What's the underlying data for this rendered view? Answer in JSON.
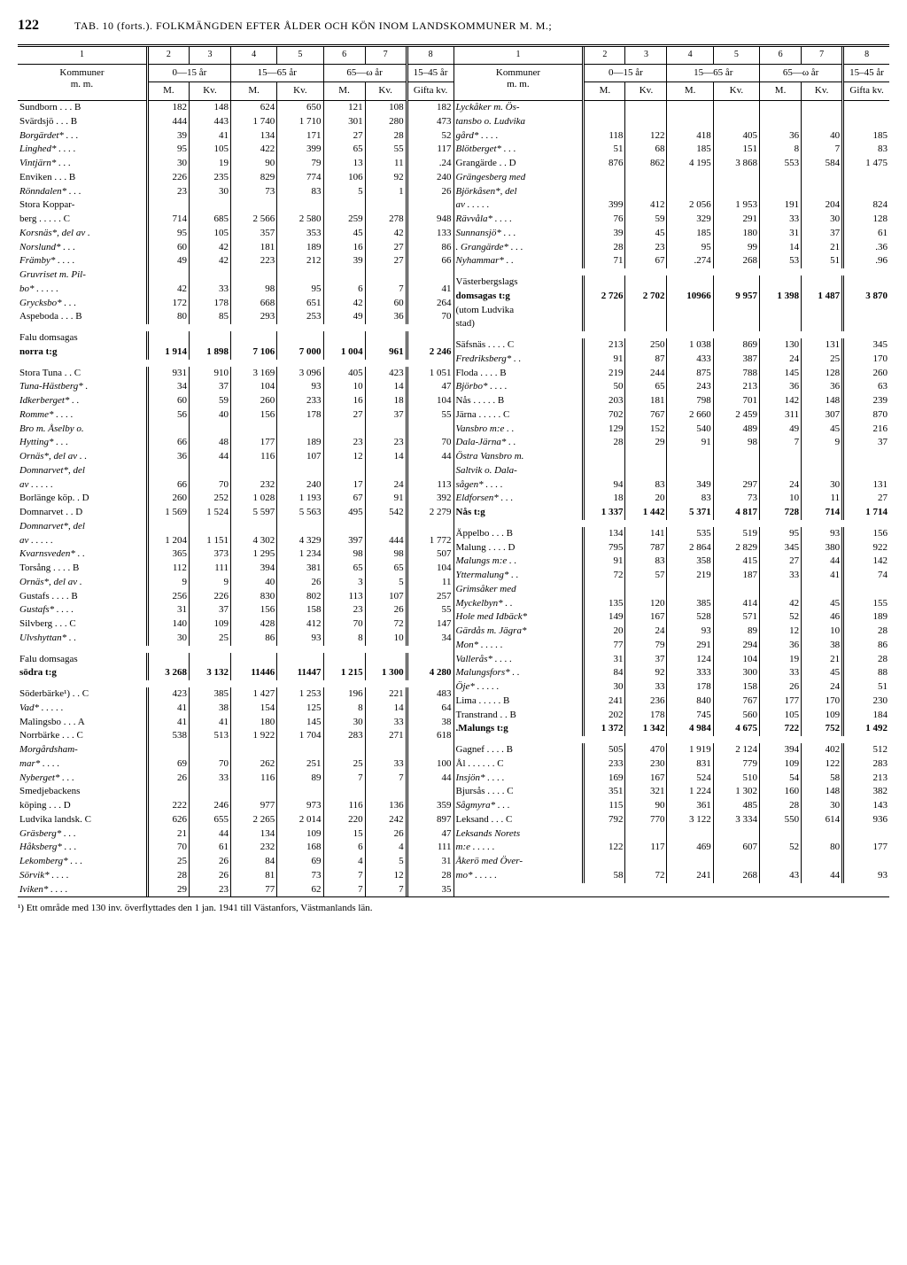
{
  "page_number": "122",
  "page_title": "TAB. 10 (forts.). FOLKMÄNGDEN EFTER ÅLDER OCH KÖN INOM LANDSKOMMUNER M. M.;",
  "footnote": "¹) Ett område med 130 inv. överflyttades den 1 jan. 1941 till Västanfors, Västmanlands län.",
  "header": {
    "col_nums": [
      "1",
      "2",
      "3",
      "4",
      "5",
      "6",
      "7",
      "8"
    ],
    "kommuner": "Kommuner",
    "mm": "m. m.",
    "g0_15": "0—15 år",
    "g15_65": "15—65 år",
    "g65_w": "65—ω år",
    "g15_45": "15–45 år",
    "M": "M.",
    "Kv": "Kv.",
    "Gifta": "Gifta kv."
  },
  "left_rows": [
    {
      "n": "Sundborn . . . B",
      "c": [
        "182",
        "148",
        "624",
        "650",
        "121",
        "108",
        "182"
      ]
    },
    {
      "n": "Svärdsjö . . . B",
      "c": [
        "444",
        "443",
        "1 740",
        "1 710",
        "301",
        "280",
        "473"
      ]
    },
    {
      "n": "Borgärdet* . . .",
      "i": true,
      "c": [
        "39",
        "41",
        "134",
        "171",
        "27",
        "28",
        "52"
      ]
    },
    {
      "n": "Linghed* . . . .",
      "i": true,
      "c": [
        "95",
        "105",
        "422",
        "399",
        "65",
        "55",
        "117"
      ]
    },
    {
      "n": "Vintjärn* . . .",
      "i": true,
      "c": [
        "30",
        "19",
        "90",
        "79",
        "13",
        "11",
        ".24"
      ]
    },
    {
      "n": "Enviken . . . B",
      "c": [
        "226",
        "235",
        "829",
        "774",
        "106",
        "92",
        "240"
      ]
    },
    {
      "n": "Rönndalen* . . .",
      "i": true,
      "c": [
        "23",
        "30",
        "73",
        "83",
        "5",
        "1",
        "26"
      ]
    },
    {
      "n": "Stora Koppar-",
      "c": [
        "",
        "",
        "",
        "",
        "",
        "",
        ""
      ]
    },
    {
      "n": "  berg . . . . . C",
      "c": [
        "714",
        "685",
        "2 566",
        "2 580",
        "259",
        "278",
        "948"
      ]
    },
    {
      "n": "Korsnäs*, del av .",
      "i": true,
      "c": [
        "95",
        "105",
        "357",
        "353",
        "45",
        "42",
        "133"
      ]
    },
    {
      "n": "Norslund* . . .",
      "i": true,
      "c": [
        "60",
        "42",
        "181",
        "189",
        "16",
        "27",
        "86"
      ]
    },
    {
      "n": "Främby* . . . .",
      "i": true,
      "c": [
        "49",
        "42",
        "223",
        "212",
        "39",
        "27",
        "66"
      ]
    },
    {
      "n": "Gruvriset m. Pil-",
      "i": true,
      "c": [
        "",
        "",
        "",
        "",
        "",
        "",
        ""
      ]
    },
    {
      "n": "  bo* . . . . .",
      "i": true,
      "c": [
        "42",
        "33",
        "98",
        "95",
        "6",
        "7",
        "41"
      ]
    },
    {
      "n": "Grycksbo* . . .",
      "i": true,
      "c": [
        "172",
        "178",
        "668",
        "651",
        "42",
        "60",
        "264"
      ]
    },
    {
      "n": "Aspeboda . . . B",
      "c": [
        "80",
        "85",
        "293",
        "253",
        "49",
        "36",
        "70"
      ]
    },
    {
      "spacer": true
    },
    {
      "n": "Falu domsagas",
      "c": [
        "",
        "",
        "",
        "",
        "",
        "",
        ""
      ]
    },
    {
      "n": "      norra t:g",
      "b": true,
      "c": [
        "1 914",
        "1 898",
        "7 106",
        "7 000",
        "1 004",
        "961",
        "2 246"
      ]
    },
    {
      "spacer": true
    },
    {
      "n": "Stora Tuna . . C",
      "c": [
        "931",
        "910",
        "3 169",
        "3 096",
        "405",
        "423",
        "1 051"
      ]
    },
    {
      "n": "Tuna-Hästberg* .",
      "i": true,
      "c": [
        "34",
        "37",
        "104",
        "93",
        "10",
        "14",
        "47"
      ]
    },
    {
      "n": "Idkerberget* . .",
      "i": true,
      "c": [
        "60",
        "59",
        "260",
        "233",
        "16",
        "18",
        "104"
      ]
    },
    {
      "n": "Romme* . . . .",
      "i": true,
      "c": [
        "56",
        "40",
        "156",
        "178",
        "27",
        "37",
        "55"
      ]
    },
    {
      "n": "Bro m. Åselby o.",
      "i": true,
      "c": [
        "",
        "",
        "",
        "",
        "",
        "",
        ""
      ]
    },
    {
      "n": "  Hytting* . . .",
      "i": true,
      "c": [
        "66",
        "48",
        "177",
        "189",
        "23",
        "23",
        "70"
      ]
    },
    {
      "n": "Ornäs*, del av . .",
      "i": true,
      "c": [
        "36",
        "44",
        "116",
        "107",
        "12",
        "14",
        "44"
      ]
    },
    {
      "n": "Domnarvet*, del",
      "i": true,
      "c": [
        "",
        "",
        "",
        "",
        "",
        "",
        ""
      ]
    },
    {
      "n": "  av . . . . .",
      "i": true,
      "c": [
        "66",
        "70",
        "232",
        "240",
        "17",
        "24",
        "113"
      ]
    },
    {
      "n": "Borlänge köp. . D",
      "c": [
        "260",
        "252",
        "1 028",
        "1 193",
        "67",
        "91",
        "392"
      ]
    },
    {
      "n": "Domnarvet . . D",
      "c": [
        "1 569",
        "1 524",
        "5 597",
        "5 563",
        "495",
        "542",
        "2 279"
      ]
    },
    {
      "n": "Domnarvet*, del",
      "i": true,
      "c": [
        "",
        "",
        "",
        "",
        "",
        "",
        ""
      ]
    },
    {
      "n": "  av . . . . .",
      "i": true,
      "c": [
        "1 204",
        "1 151",
        "4 302",
        "4 329",
        "397",
        "444",
        "1 772"
      ]
    },
    {
      "n": "Kvarnsveden* . .",
      "i": true,
      "c": [
        "365",
        "373",
        "1 295",
        "1 234",
        "98",
        "98",
        "507"
      ]
    },
    {
      "n": "Torsång . . . . B",
      "c": [
        "112",
        "111",
        "394",
        "381",
        "65",
        "65",
        "104"
      ]
    },
    {
      "n": "Ornäs*, del av .",
      "i": true,
      "c": [
        "9",
        "9",
        "40",
        "26",
        "3",
        "5",
        "11"
      ]
    },
    {
      "n": "Gustafs . . . . B",
      "c": [
        "256",
        "226",
        "830",
        "802",
        "113",
        "107",
        "257"
      ]
    },
    {
      "n": "Gustafs* . . . .",
      "i": true,
      "c": [
        "31",
        "37",
        "156",
        "158",
        "23",
        "26",
        "55"
      ]
    },
    {
      "n": "Silvberg . . . C",
      "c": [
        "140",
        "109",
        "428",
        "412",
        "70",
        "72",
        "147"
      ]
    },
    {
      "n": "Ulvshyttan* . .",
      "i": true,
      "c": [
        "30",
        "25",
        "86",
        "93",
        "8",
        "10",
        "34"
      ]
    },
    {
      "spacer": true
    },
    {
      "n": "Falu domsagas",
      "c": [
        "",
        "",
        "",
        "",
        "",
        "",
        ""
      ]
    },
    {
      "n": "      södra t:g",
      "b": true,
      "c": [
        "3 268",
        "3 132",
        "11446",
        "11447",
        "1 215",
        "1 300",
        "4 280"
      ]
    },
    {
      "spacer": true
    },
    {
      "n": "Söderbärke¹) . . C",
      "c": [
        "423",
        "385",
        "1 427",
        "1 253",
        "196",
        "221",
        "483"
      ]
    },
    {
      "n": "Vad* . . . . .",
      "i": true,
      "c": [
        "41",
        "38",
        "154",
        "125",
        "8",
        "14",
        "64"
      ]
    },
    {
      "n": "Malingsbo . . . A",
      "c": [
        "41",
        "41",
        "180",
        "145",
        "30",
        "33",
        "38"
      ]
    },
    {
      "n": "Norrbärke . . . C",
      "c": [
        "538",
        "513",
        "1 922",
        "1 704",
        "283",
        "271",
        "618"
      ]
    },
    {
      "n": "Morgårdsham-",
      "i": true,
      "c": [
        "",
        "",
        "",
        "",
        "",
        "",
        ""
      ]
    },
    {
      "n": "  mar* . . . .",
      "i": true,
      "c": [
        "69",
        "70",
        "262",
        "251",
        "25",
        "33",
        "100"
      ]
    },
    {
      "n": "Nyberget* . . .",
      "i": true,
      "c": [
        "26",
        "33",
        "116",
        "89",
        "7",
        "7",
        "44"
      ]
    },
    {
      "n": "Smedjebackens",
      "c": [
        "",
        "",
        "",
        "",
        "",
        "",
        ""
      ]
    },
    {
      "n": "  köping . . . D",
      "c": [
        "222",
        "246",
        "977",
        "973",
        "116",
        "136",
        "359"
      ]
    },
    {
      "n": "Ludvika landsk. C",
      "c": [
        "626",
        "655",
        "2 265",
        "2 014",
        "220",
        "242",
        "897"
      ]
    },
    {
      "n": "Gräsberg* . . .",
      "i": true,
      "c": [
        "21",
        "44",
        "134",
        "109",
        "15",
        "26",
        "47"
      ]
    },
    {
      "n": "Håksberg* . . .",
      "i": true,
      "c": [
        "70",
        "61",
        "232",
        "168",
        "6",
        "4",
        "111"
      ]
    },
    {
      "n": "Lekomberg* . . .",
      "i": true,
      "c": [
        "25",
        "26",
        "84",
        "69",
        "4",
        "5",
        "31"
      ]
    },
    {
      "n": "Sörvik* . . . .",
      "i": true,
      "c": [
        "28",
        "26",
        "81",
        "73",
        "7",
        "12",
        "28"
      ]
    },
    {
      "n": "Iviken* . . . .",
      "i": true,
      "c": [
        "29",
        "23",
        "77",
        "62",
        "7",
        "7",
        "35"
      ]
    }
  ],
  "right_rows": [
    {
      "n": "Lyckåker m. Ös-",
      "i": true,
      "c": [
        "",
        "",
        "",
        "",
        "",
        "",
        ""
      ]
    },
    {
      "n": "  tansbo o. Ludvika",
      "i": true,
      "c": [
        "",
        "",
        "",
        "",
        "",
        "",
        ""
      ]
    },
    {
      "n": "  gård* . . . .",
      "i": true,
      "c": [
        "118",
        "122",
        "418",
        "405",
        "36",
        "40",
        "185"
      ]
    },
    {
      "n": "Blötberget* . . .",
      "i": true,
      "c": [
        "51",
        "68",
        "185",
        "151",
        "8",
        "7",
        "83"
      ]
    },
    {
      "n": "Grangärde . . D",
      "c": [
        "876",
        "862",
        "4 195",
        "3 868",
        "553",
        "584",
        "1 475"
      ]
    },
    {
      "n": "Grängesberg med",
      "i": true,
      "c": [
        "",
        "",
        "",
        "",
        "",
        "",
        ""
      ]
    },
    {
      "n": "  Björkåsen*, del",
      "i": true,
      "c": [
        "",
        "",
        "",
        "",
        "",
        "",
        ""
      ]
    },
    {
      "n": "  av . . . . .",
      "i": true,
      "c": [
        "399",
        "412",
        "2 056",
        "1 953",
        "191",
        "204",
        "824"
      ]
    },
    {
      "n": "Rävvåla* . . . .",
      "i": true,
      "c": [
        "76",
        "59",
        "329",
        "291",
        "33",
        "30",
        "128"
      ]
    },
    {
      "n": "Sunnansjö* . . .",
      "i": true,
      "c": [
        "39",
        "45",
        "185",
        "180",
        "31",
        "37",
        "61"
      ]
    },
    {
      "n": ". Grangärde* . . .",
      "i": true,
      "c": [
        "28",
        "23",
        "95",
        "99",
        "14",
        "21",
        ".36"
      ]
    },
    {
      "n": "Nyhammar* . .",
      "i": true,
      "c": [
        "71",
        "67",
        ".274",
        "268",
        "53",
        "51",
        ".96"
      ]
    },
    {
      "spacer": true
    },
    {
      "n": "Västerbergslags",
      "c": [
        "",
        "",
        "",
        "",
        "",
        "",
        ""
      ]
    },
    {
      "n": "   domsagas t:g",
      "b": true,
      "c": [
        "2 726",
        "2 702",
        "10966",
        "9 957",
        "1 398",
        "1 487",
        "3 870"
      ]
    },
    {
      "n": "(utom Ludvika",
      "c": [
        "",
        "",
        "",
        "",
        "",
        "",
        ""
      ]
    },
    {
      "n": "stad)",
      "c": [
        "",
        "",
        "",
        "",
        "",
        "",
        ""
      ]
    },
    {
      "spacer": true
    },
    {
      "n": "Säfsnäs . . . . C",
      "c": [
        "213",
        "250",
        "1 038",
        "869",
        "130",
        "131",
        "345"
      ]
    },
    {
      "n": "Fredriksberg* . .",
      "i": true,
      "c": [
        "91",
        "87",
        "433",
        "387",
        "24",
        "25",
        "170"
      ]
    },
    {
      "n": "Floda . . . . B",
      "c": [
        "219",
        "244",
        "875",
        "788",
        "145",
        "128",
        "260"
      ]
    },
    {
      "n": "Björbo* . . . .",
      "i": true,
      "c": [
        "50",
        "65",
        "243",
        "213",
        "36",
        "36",
        "63"
      ]
    },
    {
      "n": "Nås . . . . . B",
      "c": [
        "203",
        "181",
        "798",
        "701",
        "142",
        "148",
        "239"
      ]
    },
    {
      "n": "Järna . . . . . C",
      "c": [
        "702",
        "767",
        "2 660",
        "2 459",
        "311",
        "307",
        "870"
      ]
    },
    {
      "n": "Vansbro m:e . .",
      "i": true,
      "c": [
        "129",
        "152",
        "540",
        "489",
        "49",
        "45",
        "216"
      ]
    },
    {
      "n": "Dala-Järna* . .",
      "i": true,
      "c": [
        "28",
        "29",
        "91",
        "98",
        "7",
        "9",
        "37"
      ]
    },
    {
      "n": "Östra Vansbro m.",
      "i": true,
      "c": [
        "",
        "",
        "",
        "",
        "",
        "",
        ""
      ]
    },
    {
      "n": "  Saltvik o. Dala-",
      "i": true,
      "c": [
        "",
        "",
        "",
        "",
        "",
        "",
        ""
      ]
    },
    {
      "n": "  sågen* . . . .",
      "i": true,
      "c": [
        "94",
        "83",
        "349",
        "297",
        "24",
        "30",
        "131"
      ]
    },
    {
      "n": "Eldforsen* . . .",
      "i": true,
      "c": [
        "18",
        "20",
        "83",
        "73",
        "10",
        "11",
        "27"
      ]
    },
    {
      "n": "        Nås t:g",
      "b": true,
      "c": [
        "1 337",
        "1 442",
        "5 371",
        "4 817",
        "728",
        "714",
        "1 714"
      ]
    },
    {
      "spacer": true
    },
    {
      "n": "Äppelbo . . . B",
      "c": [
        "134",
        "141",
        "535",
        "519",
        "95",
        "93",
        "156"
      ]
    },
    {
      "n": "Malung . . . . D",
      "c": [
        "795",
        "787",
        "2 864",
        "2 829",
        "345",
        "380",
        "922"
      ]
    },
    {
      "n": "Malungs m:e . .",
      "i": true,
      "c": [
        "91",
        "83",
        "358",
        "415",
        "27",
        "44",
        "142"
      ]
    },
    {
      "n": "Yttermalung* . .",
      "i": true,
      "c": [
        "72",
        "57",
        "219",
        "187",
        "33",
        "41",
        "74"
      ]
    },
    {
      "n": "Grimsåker med",
      "i": true,
      "c": [
        "",
        "",
        "",
        "",
        "",
        "",
        ""
      ]
    },
    {
      "n": "  Myckelbyn* . .",
      "i": true,
      "c": [
        "135",
        "120",
        "385",
        "414",
        "42",
        "45",
        "155"
      ]
    },
    {
      "n": "Hole med Idbäck*",
      "i": true,
      "c": [
        "149",
        "167",
        "528",
        "571",
        "52",
        "46",
        "189"
      ]
    },
    {
      "n": "Gärdås m. Jägra*",
      "i": true,
      "c": [
        "20",
        "24",
        "93",
        "89",
        "12",
        "10",
        "28"
      ]
    },
    {
      "n": "Mon* . . . . .",
      "i": true,
      "c": [
        "77",
        "79",
        "291",
        "294",
        "36",
        "38",
        "86"
      ]
    },
    {
      "n": "Vallerås* . . . .",
      "i": true,
      "c": [
        "31",
        "37",
        "124",
        "104",
        "19",
        "21",
        "28"
      ]
    },
    {
      "n": "Malungsfors* . .",
      "i": true,
      "c": [
        "84",
        "92",
        "333",
        "300",
        "33",
        "45",
        "88"
      ]
    },
    {
      "n": "Öje* . . . . .",
      "i": true,
      "c": [
        "30",
        "33",
        "178",
        "158",
        "26",
        "24",
        "51"
      ]
    },
    {
      "n": "Lima . . . . . B",
      "c": [
        "241",
        "236",
        "840",
        "767",
        "177",
        "170",
        "230"
      ]
    },
    {
      "n": "Transtrand . . B",
      "c": [
        "202",
        "178",
        "745",
        "560",
        "105",
        "109",
        "184"
      ]
    },
    {
      "n": "   .Malungs t:g",
      "b": true,
      "c": [
        "1 372",
        "1 342",
        "4 984",
        "4 675",
        "722",
        "752",
        "1 492"
      ]
    },
    {
      "spacer": true
    },
    {
      "n": "Gagnef . . . . B",
      "c": [
        "505",
        "470",
        "1 919",
        "2 124",
        "394",
        "402",
        "512"
      ]
    },
    {
      "n": "Ål . . . . . . C",
      "c": [
        "233",
        "230",
        "831",
        "779",
        "109",
        "122",
        "283"
      ]
    },
    {
      "n": "Insjön* . . . .",
      "i": true,
      "c": [
        "169",
        "167",
        "524",
        "510",
        "54",
        "58",
        "213"
      ]
    },
    {
      "n": "Bjursås . . . . C",
      "c": [
        "351",
        "321",
        "1 224",
        "1 302",
        "160",
        "148",
        "382"
      ]
    },
    {
      "n": "Sågmyra* . . .",
      "i": true,
      "c": [
        "115",
        "90",
        "361",
        "485",
        "28",
        "30",
        "143"
      ]
    },
    {
      "n": "Leksand . . . C",
      "c": [
        "792",
        "770",
        "3 122",
        "3 334",
        "550",
        "614",
        "936"
      ]
    },
    {
      "n": "Leksands Norets",
      "i": true,
      "c": [
        "",
        "",
        "",
        "",
        "",
        "",
        ""
      ]
    },
    {
      "n": "  m:e . . . . .",
      "i": true,
      "c": [
        "122",
        "117",
        "469",
        "607",
        "52",
        "80",
        "177"
      ]
    },
    {
      "n": "Åkerö med Över-",
      "i": true,
      "c": [
        "",
        "",
        "",
        "",
        "",
        "",
        ""
      ]
    },
    {
      "n": "  mo* . . . . .",
      "i": true,
      "c": [
        "58",
        "72",
        "241",
        "268",
        "43",
        "44",
        "93"
      ]
    }
  ]
}
